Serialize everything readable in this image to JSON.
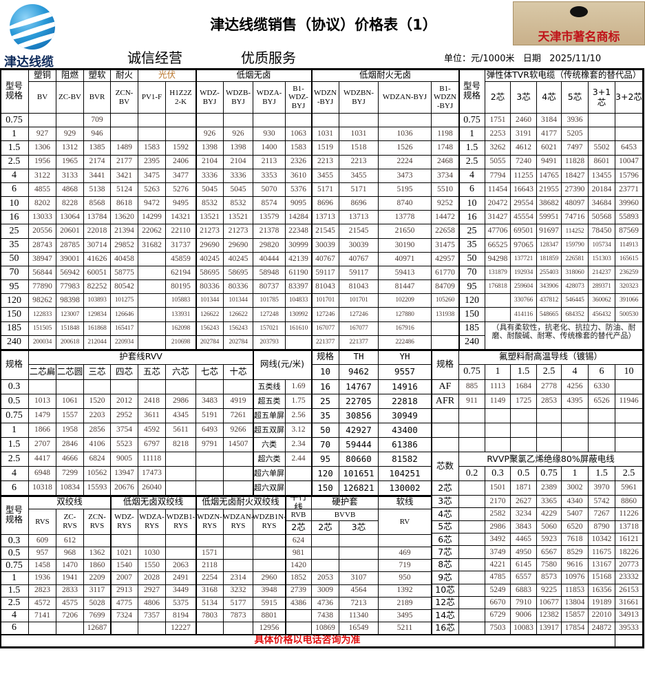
{
  "header": {
    "logo_text": "津达线缆",
    "title": "津达线缆销售（协议）价格表（1）",
    "badge_text": "天津市著名商标",
    "slogan_1": "诚信经营",
    "slogan_2": "优质服务",
    "unit": "单位：元/1000米   日期   2025/11/10"
  },
  "colors": {
    "values": "#4a3a34",
    "footer": "#e01010",
    "logo": "#1a8ad0"
  },
  "top": {
    "spec_label": "型号\n规格",
    "groups": [
      "塑铜",
      "阻燃",
      "塑软",
      "耐火",
      "光伏",
      "低烟无卤",
      "低烟耐火无卤"
    ],
    "models": [
      "BV",
      "ZC-BV",
      "BVR",
      "ZCN-\nBV",
      "PV1-F",
      "H1Z2Z\n2-K",
      "WDZ-\nBYJ",
      "WDZB-\nBYJ",
      "WDZA-\nBYJ",
      "B1-\nWDZ-\nBYJ",
      "WDZN\n-BYJ",
      "WDZBN-\nBYJ",
      "WDZAN-BYJ",
      "B1-\nWDZN\n-BYJ"
    ],
    "rows": [
      {
        "spec": "0.75",
        "v": [
          "",
          "",
          "709",
          "",
          "",
          "",
          "",
          "",
          "",
          "",
          "",
          "",
          "",
          ""
        ]
      },
      {
        "spec": "1",
        "v": [
          "927",
          "929",
          "946",
          "",
          "",
          "",
          "926",
          "926",
          "930",
          "1063",
          "1031",
          "1031",
          "1036",
          "1198"
        ]
      },
      {
        "spec": "1.5",
        "v": [
          "1306",
          "1312",
          "1385",
          "1489",
          "1583",
          "1592",
          "1398",
          "1398",
          "1400",
          "1583",
          "1519",
          "1518",
          "1526",
          "1748"
        ]
      },
      {
        "spec": "2.5",
        "v": [
          "1956",
          "1965",
          "2174",
          "2177",
          "2395",
          "2406",
          "2104",
          "2104",
          "2113",
          "2326",
          "2213",
          "2213",
          "2224",
          "2468"
        ]
      },
      {
        "spec": "4",
        "v": [
          "3122",
          "3133",
          "3441",
          "3421",
          "3475",
          "3477",
          "3336",
          "3336",
          "3353",
          "3610",
          "3455",
          "3455",
          "3473",
          "3734"
        ]
      },
      {
        "spec": "6",
        "v": [
          "4855",
          "4868",
          "5138",
          "5124",
          "5263",
          "5276",
          "5045",
          "5045",
          "5070",
          "5376",
          "5171",
          "5171",
          "5195",
          "5510"
        ]
      },
      {
        "spec": "10",
        "v": [
          "8202",
          "8228",
          "8568",
          "8618",
          "9472",
          "9495",
          "8532",
          "8532",
          "8574",
          "9095",
          "8696",
          "8696",
          "8740",
          "9252"
        ]
      },
      {
        "spec": "16",
        "v": [
          "13033",
          "13064",
          "13784",
          "13620",
          "14299",
          "14321",
          "13521",
          "13521",
          "13579",
          "14284",
          "13713",
          "13713",
          "13778",
          "14472"
        ]
      },
      {
        "spec": "25",
        "v": [
          "20556",
          "20601",
          "22018",
          "21394",
          "22062",
          "22110",
          "21273",
          "21273",
          "21378",
          "22348",
          "21545",
          "21545",
          "21650",
          "22658"
        ]
      },
      {
        "spec": "35",
        "v": [
          "28743",
          "28785",
          "30714",
          "29852",
          "31682",
          "31737",
          "29690",
          "29690",
          "29820",
          "30999",
          "30039",
          "30039",
          "30190",
          "31475"
        ]
      },
      {
        "spec": "50",
        "v": [
          "38947",
          "39001",
          "41626",
          "40458",
          "",
          "45859",
          "40245",
          "40245",
          "40444",
          "42139",
          "40767",
          "40767",
          "40971",
          "42957"
        ]
      },
      {
        "spec": "70",
        "v": [
          "56844",
          "56942",
          "60051",
          "58775",
          "",
          "62194",
          "58695",
          "58695",
          "58948",
          "61190",
          "59117",
          "59117",
          "59413",
          "61770"
        ]
      },
      {
        "spec": "95",
        "v": [
          "77890",
          "77983",
          "82252",
          "80542",
          "",
          "80195",
          "80336",
          "80336",
          "80737",
          "83397",
          "81043",
          "81043",
          "81447",
          "84709"
        ]
      },
      {
        "spec": "120",
        "v": [
          "98262",
          "98398",
          "103893",
          "101275",
          "",
          "105883",
          "101344",
          "101344",
          "101785",
          "104833",
          "101701",
          "101701",
          "102209",
          "105260"
        ]
      },
      {
        "spec": "150",
        "v": [
          "122833",
          "123007",
          "129834",
          "126646",
          "",
          "133931",
          "126622",
          "126622",
          "127248",
          "130992",
          "127246",
          "127246",
          "127880",
          "131938"
        ]
      },
      {
        "spec": "185",
        "v": [
          "151505",
          "151848",
          "161868",
          "165417",
          "",
          "162098",
          "156243",
          "156243",
          "157021",
          "161610",
          "167077",
          "167077",
          "167916",
          ""
        ]
      },
      {
        "spec": "240",
        "v": [
          "200034",
          "200618",
          "212044",
          "220934",
          "",
          "210698",
          "202784",
          "202784",
          "203793",
          "",
          "221377",
          "221377",
          "222486",
          ""
        ]
      }
    ]
  },
  "tvr": {
    "title": "弹性体TVR软电缆（传统橡套的替代品）",
    "spec_label": "型号\n规格",
    "cols": [
      "2芯",
      "3芯",
      "4芯",
      "5芯",
      "3+1芯",
      "3+2芯"
    ],
    "rows": [
      {
        "spec": "0.75",
        "v": [
          "1751",
          "2460",
          "3184",
          "3936",
          "",
          ""
        ]
      },
      {
        "spec": "1",
        "v": [
          "2253",
          "3191",
          "4177",
          "5205",
          "",
          ""
        ]
      },
      {
        "spec": "1.5",
        "v": [
          "3262",
          "4612",
          "6021",
          "7497",
          "5502",
          "6453"
        ]
      },
      {
        "spec": "2.5",
        "v": [
          "5055",
          "7240",
          "9491",
          "11828",
          "8601",
          "10047"
        ]
      },
      {
        "spec": "4",
        "v": [
          "7794",
          "11255",
          "14765",
          "18427",
          "13455",
          "15796"
        ]
      },
      {
        "spec": "6",
        "v": [
          "11454",
          "16643",
          "21955",
          "27390",
          "20184",
          "23771"
        ]
      },
      {
        "spec": "10",
        "v": [
          "20472",
          "29554",
          "38682",
          "48097",
          "34684",
          "39960"
        ]
      },
      {
        "spec": "16",
        "v": [
          "31427",
          "45554",
          "59951",
          "74716",
          "50568",
          "55893"
        ]
      },
      {
        "spec": "25",
        "v": [
          "47706",
          "69501",
          "91697",
          "114252",
          "78450",
          "87569"
        ]
      },
      {
        "spec": "35",
        "v": [
          "66525",
          "97065",
          "128347",
          "159790",
          "105734",
          "114913"
        ]
      },
      {
        "spec": "50",
        "v": [
          "94298",
          "137721",
          "181859",
          "226581",
          "151303",
          "165615"
        ]
      },
      {
        "spec": "70",
        "v": [
          "131879",
          "192934",
          "255403",
          "318060",
          "214237",
          "236259"
        ]
      },
      {
        "spec": "95",
        "v": [
          "176818",
          "259604",
          "343906",
          "428073",
          "289371",
          "320323"
        ]
      },
      {
        "spec": "120",
        "v": [
          "",
          "330766",
          "437812",
          "546445",
          "360062",
          "391066"
        ]
      },
      {
        "spec": "150",
        "v": [
          "",
          "414116",
          "548665",
          "684352",
          "456432",
          "500530"
        ]
      },
      {
        "spec": "185",
        "v": []
      },
      {
        "spec": "240",
        "v": []
      }
    ],
    "note": "（具有柔软性，抗老化、抗拉力、防油、耐磨、耐酸碱、耐寒、传统橡套的替代产品）"
  },
  "rvv": {
    "spec_label": "规格",
    "title": "护套线RVV",
    "cols": [
      "二芯扁",
      "二芯圆",
      "三芯",
      "四芯",
      "五芯",
      "六芯",
      "七芯",
      "十芯"
    ],
    "rows": [
      {
        "spec": "0.3",
        "v": [
          "",
          "",
          "",
          "",
          "",
          "",
          "",
          ""
        ]
      },
      {
        "spec": "0.5",
        "v": [
          "1013",
          "1061",
          "1520",
          "2012",
          "2418",
          "2986",
          "3483",
          "4919"
        ]
      },
      {
        "spec": "0.75",
        "v": [
          "1479",
          "1557",
          "2203",
          "2952",
          "3611",
          "4345",
          "5191",
          "7261"
        ]
      },
      {
        "spec": "1",
        "v": [
          "1866",
          "1958",
          "2856",
          "3754",
          "4592",
          "5611",
          "6493",
          "9266"
        ]
      },
      {
        "spec": "1.5",
        "v": [
          "2707",
          "2846",
          "4106",
          "5523",
          "6797",
          "8218",
          "9791",
          "14507"
        ]
      },
      {
        "spec": "2.5",
        "v": [
          "4417",
          "4666",
          "6824",
          "9005",
          "11118",
          "",
          "",
          ""
        ]
      },
      {
        "spec": "4",
        "v": [
          "6948",
          "7299",
          "10562",
          "13947",
          "17473",
          "",
          "",
          ""
        ]
      },
      {
        "spec": "6",
        "v": [
          "10318",
          "10834",
          "15593",
          "20676",
          "26040",
          "",
          "",
          ""
        ]
      }
    ]
  },
  "network": {
    "title": "网线(元/米)",
    "items": [
      {
        "name": "五类线",
        "price": "1.69"
      },
      {
        "name": "超五类",
        "price": "1.75"
      },
      {
        "name": "超五单屏",
        "price": "2.56"
      },
      {
        "name": "超五双屏",
        "price": "3.12"
      },
      {
        "name": "六类",
        "price": "2.34"
      },
      {
        "name": "超六类",
        "price": "2.44"
      },
      {
        "name": "超六单屏",
        "price": ""
      },
      {
        "name": "超六双屏",
        "price": ""
      }
    ]
  },
  "thyh": {
    "spec_label": "规格",
    "cols": [
      "TH",
      "YH"
    ],
    "rows": [
      {
        "spec": "10",
        "v": [
          "9462",
          "9557"
        ]
      },
      {
        "spec": "16",
        "v": [
          "14767",
          "14916"
        ]
      },
      {
        "spec": "25",
        "v": [
          "22705",
          "22818"
        ]
      },
      {
        "spec": "35",
        "v": [
          "30856",
          "30949"
        ]
      },
      {
        "spec": "50",
        "v": [
          "42927",
          "43400"
        ]
      },
      {
        "spec": "70",
        "v": [
          "59444",
          "61386"
        ]
      },
      {
        "spec": "95",
        "v": [
          "80660",
          "81582"
        ]
      },
      {
        "spec": "120",
        "v": [
          "101651",
          "104251"
        ]
      },
      {
        "spec": "150",
        "v": [
          "126821",
          "130002"
        ]
      }
    ]
  },
  "fluoro": {
    "spec_label": "规格",
    "title": "氟塑料耐高温导线（镀锡）",
    "cols": [
      "0.75",
      "1",
      "1.5",
      "2.5",
      "4",
      "6",
      "10"
    ],
    "rows": [
      {
        "spec": "AF",
        "v": [
          "885",
          "1113",
          "1684",
          "2778",
          "4256",
          "6330",
          ""
        ]
      },
      {
        "spec": "AFR",
        "v": [
          "911",
          "1149",
          "1725",
          "2853",
          "4395",
          "6526",
          "11946"
        ]
      }
    ]
  },
  "rvvp": {
    "spec_label": "芯数",
    "title": "RVVP聚氯乙烯绝缘80%屏蔽电线",
    "cols": [
      "0.2",
      "0.3",
      "0.5",
      "0.75",
      "1",
      "1.5",
      "2.5"
    ],
    "rows": [
      {
        "spec": "2芯",
        "v": [
          "",
          "1501",
          "1871",
          "2389",
          "3002",
          "3970",
          "5961"
        ]
      },
      {
        "spec": "3芯",
        "v": [
          "",
          "2170",
          "2627",
          "3365",
          "4340",
          "5742",
          "8860"
        ]
      },
      {
        "spec": "4芯",
        "v": [
          "",
          "2582",
          "3234",
          "4229",
          "5407",
          "7267",
          "11226"
        ]
      },
      {
        "spec": "5芯",
        "v": [
          "",
          "2986",
          "3843",
          "5060",
          "6520",
          "8790",
          "13718"
        ]
      },
      {
        "spec": "6芯",
        "v": [
          "",
          "3492",
          "4465",
          "5923",
          "7618",
          "10342",
          "16121"
        ]
      },
      {
        "spec": "7芯",
        "v": [
          "",
          "3749",
          "4950",
          "6567",
          "8529",
          "11675",
          "18226"
        ]
      },
      {
        "spec": "8芯",
        "v": [
          "",
          "4221",
          "6145",
          "7580",
          "9616",
          "13167",
          "20773"
        ]
      },
      {
        "spec": "9芯",
        "v": [
          "",
          "4785",
          "6557",
          "8573",
          "10976",
          "15168",
          "23332"
        ]
      },
      {
        "spec": "10芯",
        "v": [
          "",
          "5249",
          "6883",
          "9225",
          "11853",
          "16356",
          "26153"
        ]
      },
      {
        "spec": "12芯",
        "v": [
          "",
          "6670",
          "7910",
          "10677",
          "13804",
          "19189",
          "31661"
        ]
      },
      {
        "spec": "14芯",
        "v": [
          "",
          "6729",
          "9006",
          "12382",
          "15857",
          "22010",
          "34913"
        ]
      },
      {
        "spec": "16芯",
        "v": [
          "",
          "7503",
          "10083",
          "13917",
          "17854",
          "24872",
          "39533"
        ]
      }
    ]
  },
  "bottom": {
    "spec_label": "型号\n规格",
    "groups": [
      "双绞线",
      "低烟无卤双绞线",
      "低烟无卤耐火双绞线",
      "平行线",
      "硬护套",
      "软线"
    ],
    "models": [
      "RVS",
      "ZC-\nRVS",
      "ZCN-\nRVS",
      "WDZ-\nRYS",
      "WDZA-\nRYS",
      "WDZB1-\nRYS",
      "WDZN-\nRYS",
      "WDZAN-\nRYS",
      "WDZB1N-\nRYS",
      "RVB",
      "BVVB",
      "RV"
    ],
    "sub": [
      "2芯",
      "2芯",
      "3芯"
    ],
    "rows": [
      {
        "spec": "0.3",
        "v": [
          "609",
          "612",
          "",
          "",
          "",
          "",
          "",
          "",
          "",
          "624",
          "",
          "",
          ""
        ]
      },
      {
        "spec": "0.5",
        "v": [
          "957",
          "968",
          "1362",
          "1021",
          "1030",
          "",
          "1571",
          "",
          "",
          "981",
          "",
          "",
          "469"
        ]
      },
      {
        "spec": "0.75",
        "v": [
          "1458",
          "1470",
          "1860",
          "1540",
          "1550",
          "2063",
          "2118",
          "",
          "",
          "1420",
          "",
          "",
          "719"
        ]
      },
      {
        "spec": "1",
        "v": [
          "1936",
          "1941",
          "2209",
          "2007",
          "2028",
          "2491",
          "2254",
          "2314",
          "2960",
          "1852",
          "2053",
          "3107",
          "950"
        ]
      },
      {
        "spec": "1.5",
        "v": [
          "2823",
          "2833",
          "3117",
          "2913",
          "2927",
          "3449",
          "3168",
          "3232",
          "3948",
          "2739",
          "3009",
          "4564",
          "1392"
        ]
      },
      {
        "spec": "2.5",
        "v": [
          "4572",
          "4575",
          "5028",
          "4775",
          "4806",
          "5375",
          "5134",
          "5177",
          "5915",
          "4386",
          "4736",
          "7213",
          "2189"
        ]
      },
      {
        "spec": "4",
        "v": [
          "7141",
          "7206",
          "7699",
          "7324",
          "7357",
          "8194",
          "7803",
          "7873",
          "8801",
          "",
          "7438",
          "11340",
          "3495"
        ]
      },
      {
        "spec": "6",
        "v": [
          "",
          "",
          "12687",
          "",
          "",
          "12227",
          "",
          "",
          "12956",
          "",
          "10869",
          "16549",
          "5211"
        ]
      }
    ]
  },
  "footer": {
    "text": "具体价格以电话咨询为准"
  }
}
